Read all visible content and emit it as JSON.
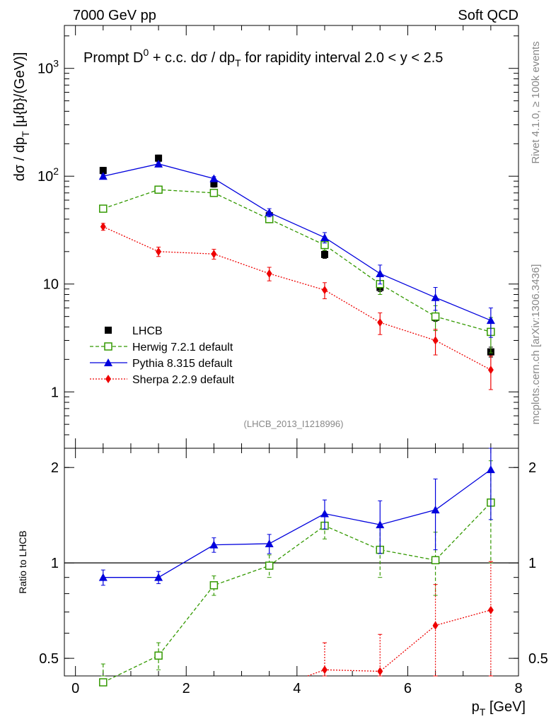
{
  "header": {
    "left": "7000 GeV pp",
    "right": "Soft QCD"
  },
  "side_text": {
    "rivet": "Rivet 4.1.0, ≥ 100k events",
    "site": "mcplots.cern.ch [arXiv:1306.3436]"
  },
  "colors": {
    "data": "#000000",
    "herwig": "#339900",
    "pythia": "#0000dd",
    "sherpa": "#ee0000",
    "analysis_tag": "#888888"
  },
  "chart_data": [
    {
      "type": "line",
      "scale": "log",
      "title_prefix": "Prompt D",
      "title_sup": "0",
      "title_rest": " + c.c.  dσ / dp",
      "title_sub": "T",
      "title_tail": " for rapidity interval 2.0 < y < 2.5",
      "ylabel": "dσ / dp",
      "ylabel_sub": "T",
      "ylabel_unit": " [μ{b}/(GeV)]",
      "xlim": [
        -0.2,
        8.0
      ],
      "ylim": [
        0.3,
        2500
      ],
      "yticks": [
        {
          "value": 1,
          "label": "1"
        },
        {
          "value": 10,
          "label": "10"
        },
        {
          "value": 100,
          "label": "10",
          "sup": "2"
        },
        {
          "value": 1000,
          "label": "10",
          "sup": "3"
        }
      ],
      "analysis_tag": "(LHCB_2013_I1218996)",
      "x": [
        0.5,
        1.5,
        2.5,
        3.5,
        4.5,
        5.5,
        6.5,
        7.5
      ],
      "series": [
        {
          "key": "data",
          "name": "LHCB",
          "marker": "square-filled",
          "line": "none",
          "values": [
            113,
            147,
            85,
            43,
            18.8,
            9.3,
            4.9,
            2.35
          ],
          "errors": [
            8,
            10,
            6,
            3,
            1.5,
            0.8,
            0.4,
            0.25
          ]
        },
        {
          "key": "herwig",
          "name": "Herwig 7.2.1 default",
          "marker": "square-open",
          "line": "dashed",
          "values": [
            50,
            75,
            70,
            40,
            23,
            10,
            5,
            3.6
          ],
          "errors": [
            2,
            3,
            3,
            3,
            2.5,
            2,
            1.3,
            1.3
          ]
        },
        {
          "key": "pythia",
          "name": "Pythia 8.315 default",
          "marker": "triangle",
          "line": "solid",
          "values": [
            100,
            130,
            95,
            46,
            27,
            12.5,
            7.5,
            4.6
          ],
          "errors": [
            3,
            4,
            4,
            4,
            3,
            2.5,
            1.8,
            1.4
          ]
        },
        {
          "key": "sherpa",
          "name": "Sherpa 2.2.9 default",
          "marker": "diamond",
          "line": "dotted",
          "values": [
            34,
            20,
            19,
            12.5,
            8.8,
            4.4,
            3.0,
            1.6
          ],
          "errors": [
            2.5,
            2,
            2,
            1.8,
            1.5,
            1.0,
            0.8,
            0.55
          ]
        }
      ]
    },
    {
      "type": "line",
      "scale": "log",
      "ylabel": "Ratio to LHCB",
      "xlabel": "p",
      "xlabel_sub": "T",
      "xlabel_unit": " [GeV]",
      "xlim": [
        -0.2,
        8.0
      ],
      "ylim": [
        0.44,
        2.3
      ],
      "xticks": [
        0,
        2,
        4,
        6,
        8
      ],
      "yticks": [
        {
          "value": 0.5,
          "label": "0.5"
        },
        {
          "value": 1,
          "label": "1"
        },
        {
          "value": 2,
          "label": "2"
        }
      ],
      "reference": 1,
      "x": [
        0.5,
        1.5,
        2.5,
        3.5,
        4.5,
        5.5,
        6.5,
        7.5
      ],
      "series": [
        {
          "key": "herwig",
          "values": [
            0.42,
            0.51,
            0.85,
            0.98,
            1.31,
            1.1,
            1.02,
            1.55
          ],
          "errors": [
            0.06,
            0.05,
            0.06,
            0.08,
            0.12,
            0.2,
            0.23,
            0.55
          ]
        },
        {
          "key": "pythia",
          "values": [
            0.9,
            0.9,
            1.14,
            1.15,
            1.43,
            1.32,
            1.47,
            1.97
          ],
          "errors": [
            0.05,
            0.04,
            0.06,
            0.08,
            0.15,
            0.25,
            0.37,
            0.6
          ]
        },
        {
          "key": "sherpa",
          "values": [
            null,
            null,
            null,
            null,
            0.46,
            0.455,
            0.635,
            0.71
          ],
          "errors": [
            0,
            0,
            0,
            0,
            0.1,
            0.14,
            0.22,
            0.3
          ]
        }
      ]
    }
  ]
}
